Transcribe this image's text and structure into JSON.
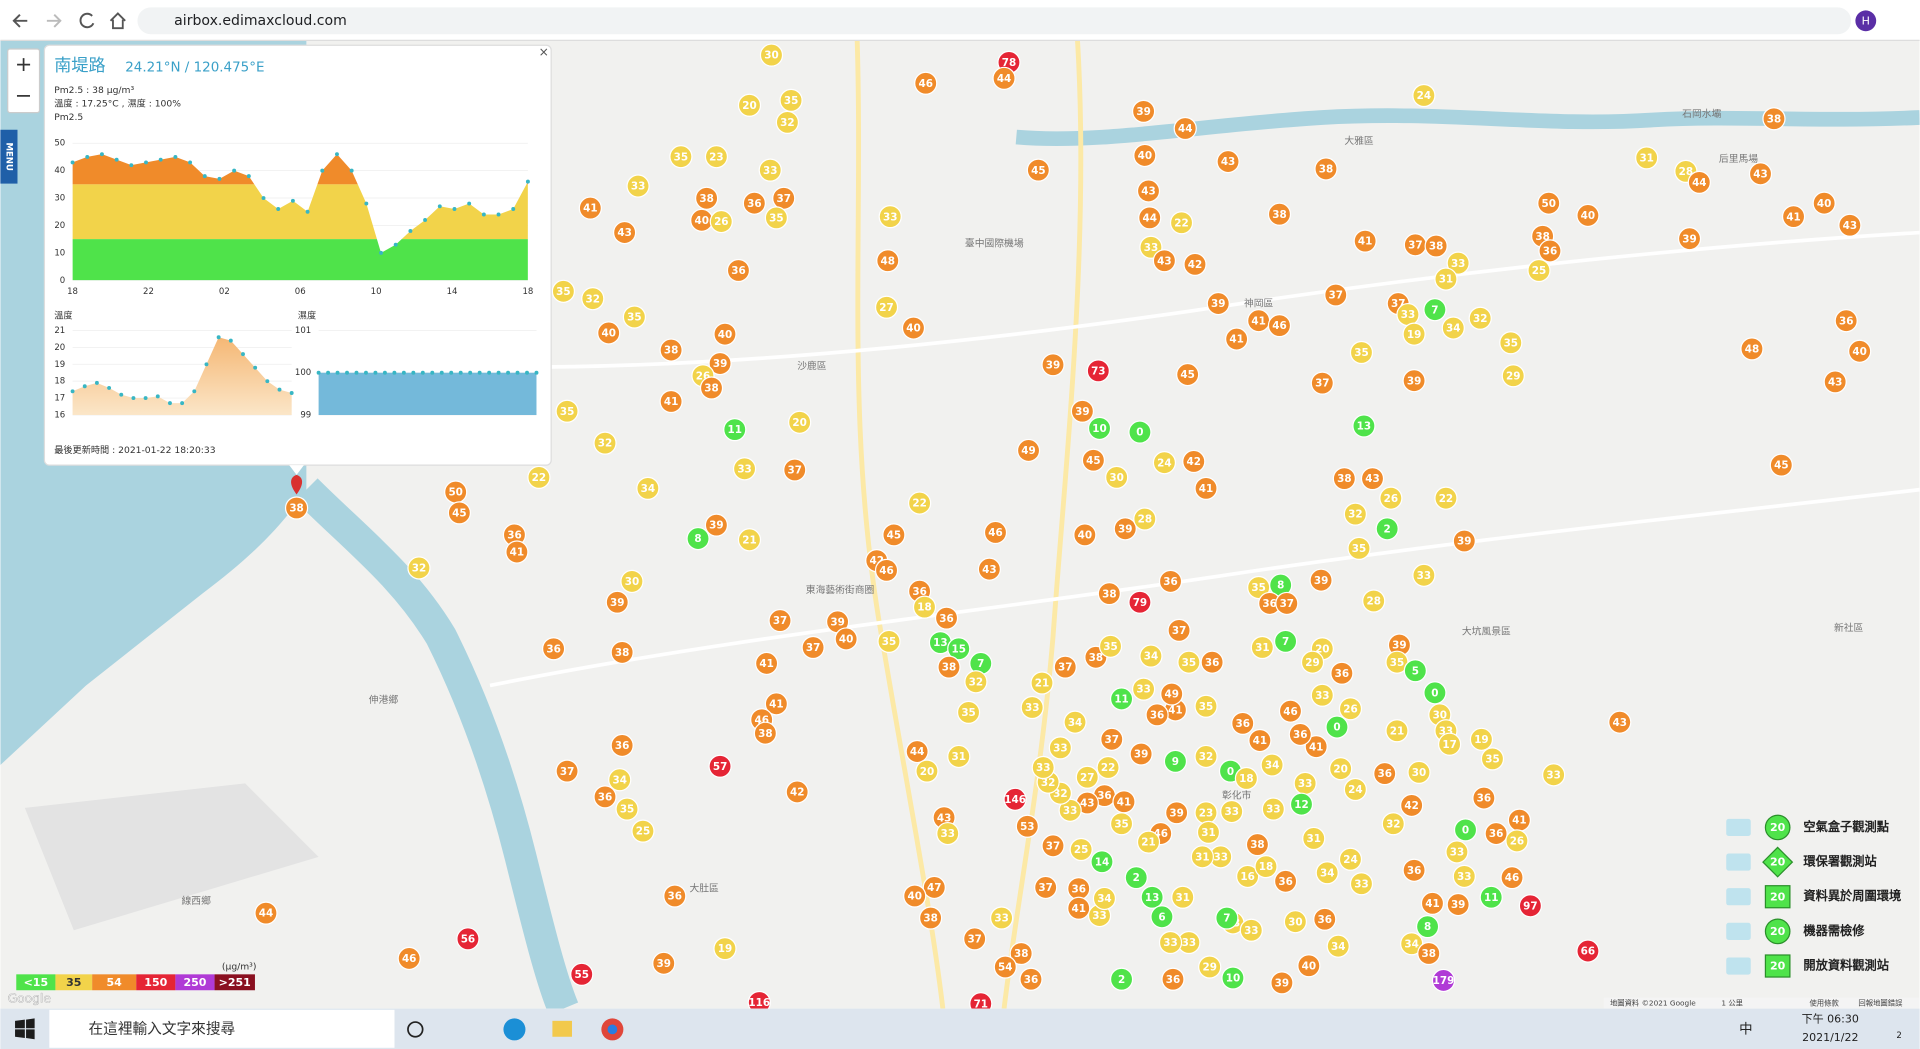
{
  "browser": {
    "url": "airbox.edimaxcloud.com",
    "avatar": "H"
  },
  "menu": "MENU",
  "zoom": {
    "in": "+",
    "out": "−"
  },
  "popup": {
    "close": "×",
    "title": "南堤路",
    "coords": "24.21°N / 120.475°E",
    "pm_line": "Pm2.5 : 38 μg/m³",
    "env_line": "溫度 : 17.25°C , 濕度 : 100%",
    "pm_label": "Pm2.5",
    "pm_chart": {
      "ylim": [
        0,
        50
      ],
      "yticks": [
        0,
        10,
        20,
        30,
        40,
        50
      ],
      "xtick_labels": [
        "18",
        "22",
        "02",
        "06",
        "10",
        "14",
        "18"
      ],
      "values": [
        43,
        45,
        46,
        44,
        42,
        43,
        44,
        45,
        43,
        38,
        37,
        40,
        38,
        30,
        26,
        29,
        25,
        40,
        46,
        40,
        28,
        10,
        13,
        18,
        22,
        27,
        26,
        28,
        24,
        24,
        26,
        36
      ]
    },
    "temp_chart": {
      "label": "溫度",
      "ylim": [
        16,
        21
      ],
      "yticks": [
        16,
        17,
        18,
        19,
        20,
        21
      ],
      "values": [
        17.4,
        17.7,
        17.9,
        17.6,
        17.2,
        17.0,
        17.0,
        17.1,
        16.7,
        16.7,
        17.4,
        19.0,
        20.6,
        20.4,
        19.6,
        18.8,
        18.0,
        17.5,
        17.3
      ]
    },
    "hum_chart": {
      "label": "濕度",
      "ylim": [
        99,
        101
      ],
      "yticks": [
        99,
        100,
        101
      ],
      "values": [
        100,
        100,
        100,
        100,
        100,
        100,
        100,
        100,
        100,
        100,
        100,
        100,
        100,
        100,
        100,
        100,
        100,
        100,
        100,
        100,
        100,
        100,
        100,
        100
      ]
    },
    "updated": "最後更新時間 : 2021-01-22 18:20:33"
  },
  "markers": [
    30,
    78,
    44,
    46,
    20,
    35,
    32,
    39,
    44,
    35,
    23,
    33,
    43,
    38,
    40,
    45,
    33,
    38,
    37,
    36,
    35,
    40,
    26,
    41,
    43,
    33,
    43,
    44,
    22,
    38,
    41,
    37,
    38,
    33,
    31,
    24,
    31,
    28,
    44,
    43,
    38,
    50,
    40,
    38,
    36,
    25,
    40,
    41,
    43,
    39,
    33,
    43,
    42,
    48,
    36,
    27,
    40,
    32,
    35,
    35,
    40,
    40,
    38,
    39,
    26,
    38,
    41,
    39,
    41,
    46,
    37,
    37,
    33,
    7,
    32,
    34,
    19,
    35,
    35,
    29,
    37,
    39,
    36,
    48,
    40,
    43,
    45,
    39,
    73,
    45,
    41,
    35,
    11,
    20,
    32,
    39,
    10,
    0,
    49,
    45,
    30,
    24,
    42,
    41,
    13,
    38,
    43,
    26,
    32,
    22,
    2,
    35,
    39,
    33,
    33,
    37,
    34,
    22,
    50,
    45,
    36,
    41,
    32,
    8,
    39,
    21,
    30,
    39,
    38,
    36,
    22,
    45,
    46,
    40,
    39,
    28,
    43,
    42,
    46,
    36,
    79,
    38,
    36,
    18,
    36,
    37,
    37,
    39,
    40,
    35,
    13,
    15,
    7,
    38,
    32,
    35,
    41,
    41,
    46,
    38,
    36,
    37,
    34,
    36,
    35,
    25,
    57,
    42,
    44,
    20,
    31,
    146,
    43,
    33,
    47,
    40,
    38,
    36,
    44,
    46,
    56,
    39,
    19,
    55,
    116,
    71,
    37,
    33,
    38,
    54,
    36,
    37,
    21,
    33,
    38,
    35,
    11,
    34,
    37,
    36,
    35,
    35,
    8,
    39,
    36,
    37,
    28,
    31,
    7,
    20,
    29,
    36,
    39,
    35,
    5,
    0,
    30,
    33,
    19,
    17,
    35,
    33,
    43,
    21,
    0,
    26,
    33,
    46,
    41,
    41,
    36,
    36,
    35,
    41,
    36,
    49,
    33,
    37,
    34,
    39,
    9,
    32,
    0,
    18,
    34,
    33,
    20,
    24,
    36,
    42,
    30,
    32,
    36,
    41,
    36,
    26,
    0,
    33,
    33,
    46,
    11,
    39,
    41,
    8,
    34,
    38,
    179,
    97,
    66,
    36,
    12,
    33,
    33,
    23,
    39,
    46,
    21,
    35,
    36,
    41,
    43,
    33,
    32,
    32,
    33,
    33,
    27,
    22,
    53,
    37,
    25,
    14,
    2,
    13,
    6,
    31,
    33,
    33,
    33,
    33,
    30,
    36,
    34,
    40,
    39,
    10,
    29,
    36,
    2,
    33,
    34,
    36,
    37,
    41,
    38,
    16,
    33,
    31,
    31,
    18,
    36,
    34,
    33,
    24,
    31,
    7,
    38
  ],
  "places": [
    "伸港鄉",
    "線西鄉",
    "沙鹿區",
    "大肚區",
    "東海藝術街商圈",
    "臺中國際機場",
    "新社區",
    "大坑風景區",
    "石岡水壩",
    "后里馬場",
    "神岡區",
    "大雅區",
    "彰化市"
  ],
  "levels": {
    "unit": "(μg/m³)",
    "items": [
      {
        "value": 15,
        "label": "<15",
        "color": "#4fe34a"
      },
      {
        "value": 35,
        "color": "#f2d34a"
      },
      {
        "value": 54,
        "color": "#f08b2a"
      },
      {
        "value": 150,
        "color": "#e52535"
      },
      {
        "value": 250,
        "color": "#b03ad6"
      },
      {
        "value": 251,
        "label": ">251",
        "color": "#8a1020"
      }
    ]
  },
  "station_legend": [
    {
      "label": "空氣盒子觀測點",
      "badge": "20"
    },
    {
      "label": "環保署觀測站",
      "badge": "20"
    },
    {
      "label": "資料異於周圍環境",
      "badge": "20"
    },
    {
      "label": "機器需檢修",
      "badge": "20"
    },
    {
      "label": "開放資料觀測站",
      "badge": "20"
    }
  ],
  "attribution": {
    "data": "地圖資料 ©2021 Google",
    "scale": "1 公里",
    "terms": "使用條款",
    "report": "回報地圖錯誤",
    "google": "Google"
  },
  "taskbar": {
    "search": "在這裡輸入文字來搜尋",
    "ime": "中",
    "time": "下午 06:30",
    "date": "2021/1/22",
    "notif": "2"
  }
}
